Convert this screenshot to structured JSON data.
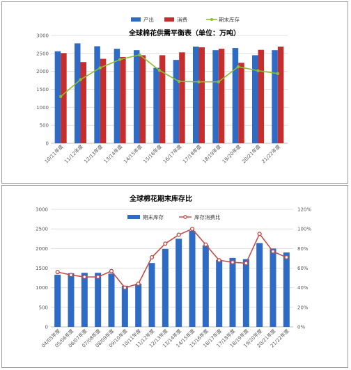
{
  "chart_data": [
    {
      "type": "bar",
      "title": "全球棉花供需平衡表（单位：万吨）",
      "categories": [
        "10/11年度",
        "11/12年度",
        "12/13年度",
        "13/14年度",
        "14/15年度",
        "15/16年度",
        "16/17年度",
        "17/18年度",
        "18/19年度",
        "19/20年度",
        "20/21年度",
        "21/22年度"
      ],
      "ylim": [
        0,
        3000
      ],
      "yticks": [
        "0",
        "500",
        "1000",
        "1500",
        "2000",
        "2500",
        "3000"
      ],
      "grid": true,
      "legend_position": "top",
      "series": [
        {
          "name": "产出",
          "kind": "bar",
          "color": "#2e6bc4",
          "values": [
            2560,
            2780,
            2700,
            2630,
            2590,
            2100,
            2320,
            2690,
            2590,
            2650,
            2450,
            2590
          ]
        },
        {
          "name": "消费",
          "kind": "bar",
          "color": "#c62d2d",
          "values": [
            2510,
            2260,
            2350,
            2400,
            2450,
            2450,
            2530,
            2670,
            2630,
            2240,
            2600,
            2690
          ]
        },
        {
          "name": "期末库存",
          "kind": "line",
          "color": "#8cbd34",
          "values": [
            1300,
            1770,
            2100,
            2330,
            2460,
            2030,
            1720,
            1710,
            1710,
            2130,
            2020,
            1940
          ]
        }
      ]
    },
    {
      "type": "bar",
      "title": "全球棉花期末库存比",
      "categories": [
        "04/05年度",
        "05/06年度",
        "06/07年度",
        "07/08年度",
        "08/09年度",
        "09/10年度",
        "10/11年度",
        "11/12年度",
        "12/13年度",
        "13/14年度",
        "14/15年度",
        "15/16年度",
        "16/17年度",
        "17/18年度",
        "18/19年度",
        "19/20年度",
        "20/21年度",
        "21/22年度"
      ],
      "ylim": [
        0,
        3000
      ],
      "y2lim": [
        0,
        1.2
      ],
      "yticks": [
        "0",
        "500",
        "1000",
        "1500",
        "2000",
        "2500",
        "3000"
      ],
      "y2ticks": [
        "0%",
        "20%",
        "40%",
        "60%",
        "80%",
        "100%",
        "120%"
      ],
      "grid": true,
      "legend_position": "top",
      "series": [
        {
          "name": "期末库存",
          "kind": "bar",
          "color": "#2e6bc4",
          "values": [
            1330,
            1370,
            1380,
            1380,
            1360,
            1050,
            1100,
            1630,
            1990,
            2250,
            2450,
            2080,
            1710,
            1760,
            1730,
            2140,
            2000,
            1900
          ]
        },
        {
          "name": "库存消费比",
          "kind": "line",
          "axis": "right",
          "color": "#c0504d",
          "values": [
            0.56,
            0.53,
            0.51,
            0.51,
            0.57,
            0.4,
            0.44,
            0.71,
            0.85,
            0.94,
            1.0,
            0.84,
            0.68,
            0.66,
            0.65,
            0.95,
            0.77,
            0.71
          ]
        }
      ]
    }
  ]
}
